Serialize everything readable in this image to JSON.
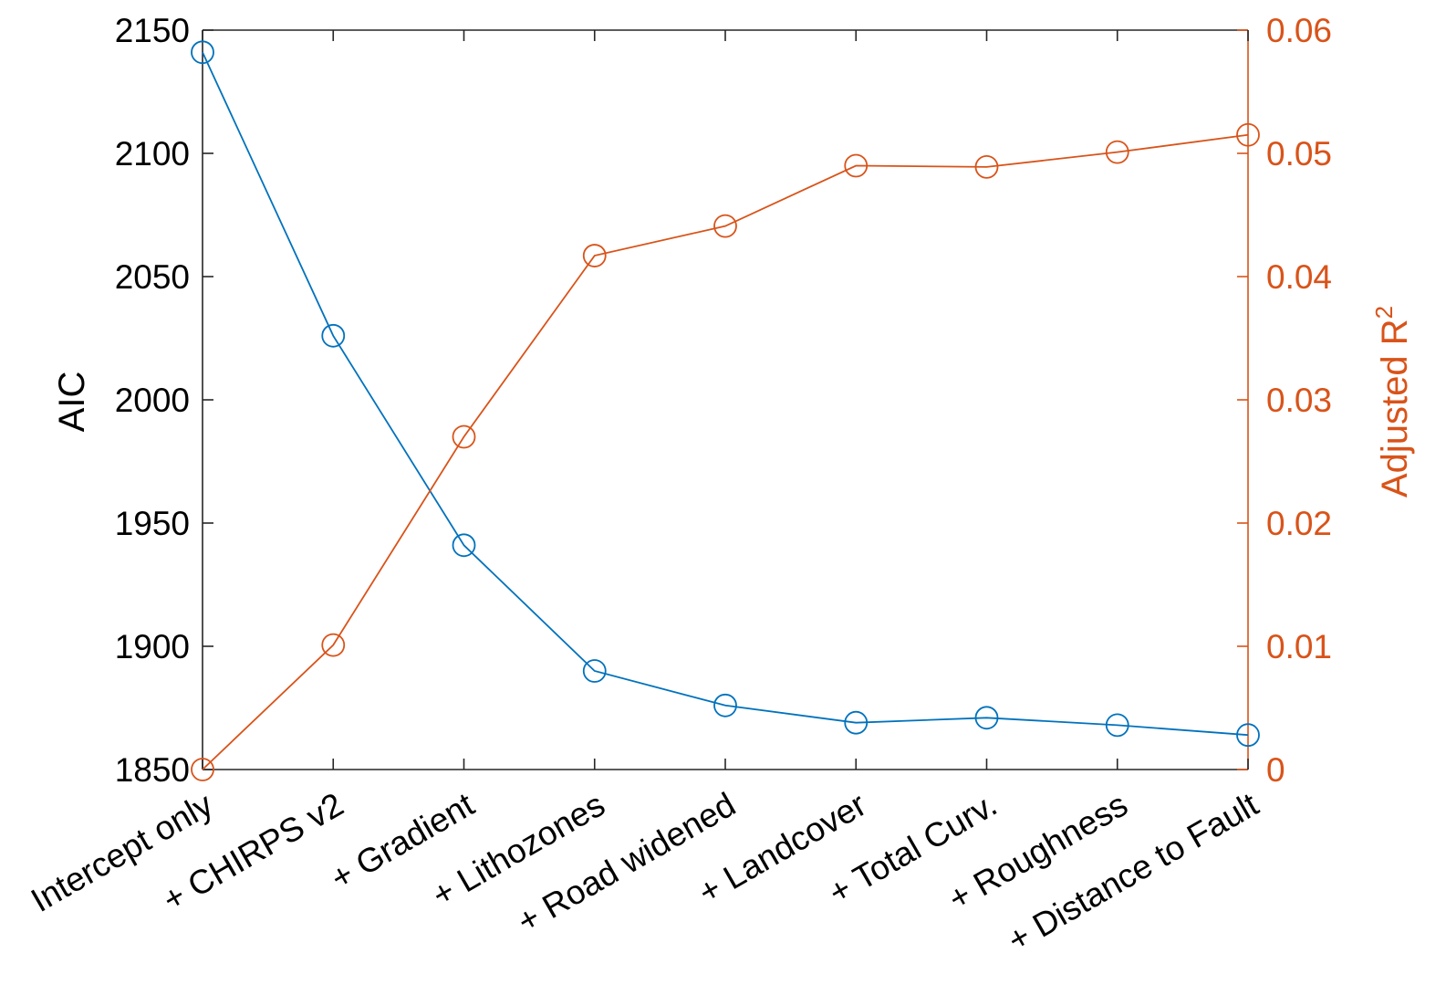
{
  "chart_data": {
    "type": "line",
    "categories": [
      "Intercept only",
      "+ CHIRPS v2",
      "+ Gradient",
      "+ Lithozones",
      "+ Road widened",
      "+ Landcover",
      "+ Total Curv.",
      "+ Roughness",
      "+ Distance to Fault"
    ],
    "series": [
      {
        "axis": "left",
        "color": "#0072BD",
        "marker": "circle-open",
        "values": [
          2141,
          2026,
          1941,
          1890,
          1876,
          1869,
          1871,
          1868,
          1864
        ]
      },
      {
        "axis": "right",
        "color": "#D95319",
        "marker": "circle-open",
        "values": [
          0.0,
          0.0101,
          0.027,
          0.0417,
          0.0441,
          0.049,
          0.0489,
          0.0501,
          0.0515
        ]
      }
    ],
    "y_left": {
      "label": "AIC",
      "range": [
        1850,
        2150
      ],
      "ticks": [
        "1850",
        "1900",
        "1950",
        "2000",
        "2050",
        "2100",
        "2150"
      ],
      "color": "#000000"
    },
    "y_right": {
      "label": "Adjusted R",
      "label_superscript": "2",
      "range": [
        0,
        0.06
      ],
      "ticks": [
        "0",
        "0.01",
        "0.02",
        "0.03",
        "0.04",
        "0.05",
        "0.06"
      ],
      "color": "#D95319"
    },
    "grid": false,
    "legend": "none"
  }
}
